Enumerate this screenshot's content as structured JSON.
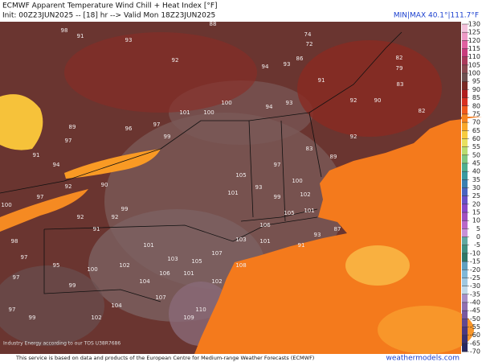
{
  "header": {
    "title": "ECMWF Apparent Temperature Wind Chill + Heat Index [°F]",
    "subtitle": "Init: 00Z23JUN2025 -- [18] hr --> Valid Mon 18Z23JUN2025",
    "minmax": "MIN|MAX 40.1°|111.7°F"
  },
  "colorbar": {
    "ticks": [
      130,
      125,
      120,
      115,
      110,
      105,
      100,
      95,
      90,
      85,
      80,
      75,
      70,
      65,
      60,
      55,
      50,
      45,
      40,
      35,
      30,
      25,
      20,
      15,
      10,
      5,
      0,
      -5,
      -10,
      -15,
      -20,
      -25,
      -30,
      -35,
      -40,
      -45,
      -50,
      -55,
      -60,
      -65,
      -70
    ],
    "colors": [
      "#f4c2dc",
      "#ee9ac6",
      "#e060a0",
      "#c83c7c",
      "#a83a5a",
      "#8a4a50",
      "#6e5050",
      "#7a2a24",
      "#b01e1e",
      "#d83020",
      "#f05a1c",
      "#f78420",
      "#f9a82a",
      "#f6cc40",
      "#e8e060",
      "#b8dc70",
      "#80c880",
      "#50b090",
      "#3a9aa0",
      "#3a80b0",
      "#4a64c0",
      "#6a50c8",
      "#8a48c8",
      "#a050c0",
      "#b868c8",
      "#c890d8",
      "#60a8a0",
      "#409080",
      "#307868",
      "#60a0c0",
      "#80b8d8",
      "#a0c8e0",
      "#c0d8e8",
      "#a890c8",
      "#9070b0",
      "#7858a0",
      "#604890",
      "#4a3880",
      "#383070",
      "#282860"
    ]
  },
  "stations": [
    98,
    91,
    93,
    92,
    88,
    74,
    72,
    94,
    93,
    86,
    82,
    79,
    90,
    82,
    83,
    92,
    91,
    94,
    93,
    100,
    100,
    101,
    97,
    99,
    96,
    89,
    97,
    94,
    92,
    97,
    91,
    90,
    99,
    92,
    91,
    92,
    105,
    101,
    93,
    99,
    100,
    102,
    101,
    105,
    106,
    103,
    107,
    105,
    103,
    101,
    102,
    100,
    99,
    95,
    97,
    106,
    104,
    101,
    102,
    110,
    109,
    107,
    104,
    102,
    99,
    97,
    97,
    98,
    100,
    87,
    93,
    91,
    108,
    101,
    92,
    89,
    83,
    97
  ],
  "credit": "Industry Energy according to our TOS U38R7686",
  "footer": "This service is based on data and products of the European Centre for Medium-range Weather Forecasts (ECMWF)",
  "watermark": "weathermodels.com"
}
